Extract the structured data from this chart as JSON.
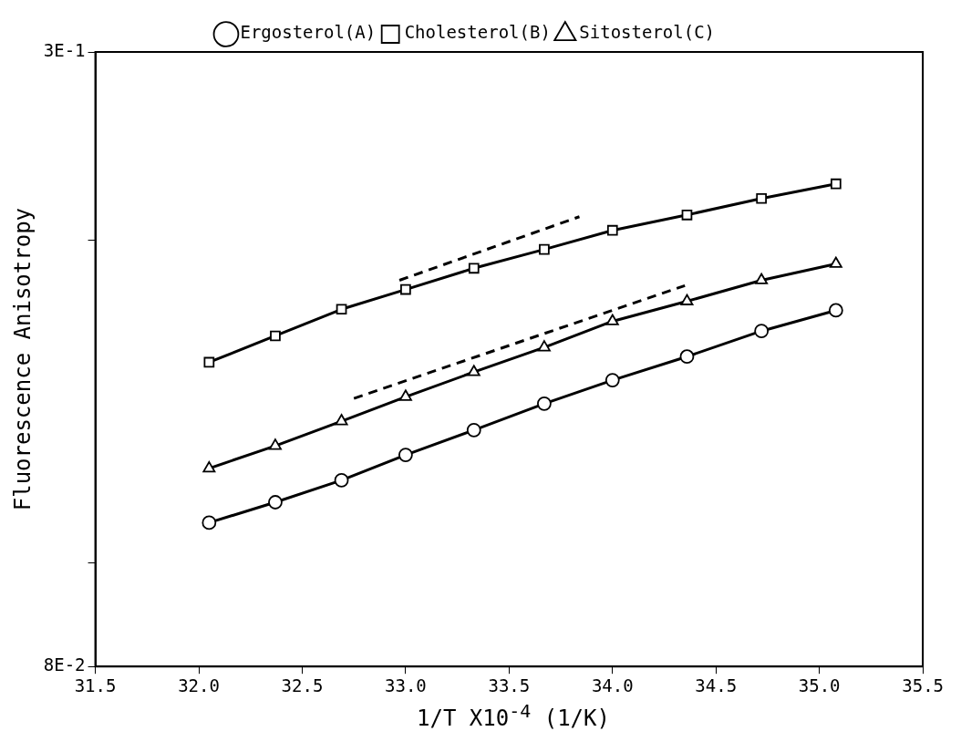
{
  "chart_data": {
    "type": "line",
    "xlabel": "1/T X10$^{-4}$  (1/K)",
    "ylabel": "Fluorescence Anisotropy",
    "log": "y",
    "grid": false,
    "legend": "top",
    "xlim": [
      31.5,
      35.5
    ],
    "xticks": [
      31.5,
      {
        "value": 32,
        "label": "32.0"
      },
      32.5,
      {
        "value": 33,
        "label": "33.0"
      },
      33.5,
      {
        "value": 34,
        "label": "34.0"
      },
      34.5,
      {
        "value": 35,
        "label": "35.0"
      },
      35.5
    ],
    "ylim": [
      0.08,
      0.3
    ],
    "yticks": [
      {
        "value": 0.08,
        "label": "8E-2"
      },
      {
        "value": 0.1,
        "label": null
      },
      {
        "value": 0.2,
        "label": null
      },
      {
        "value": 0.3,
        "label": "3E-1"
      }
    ],
    "x": [
      32.05,
      32.37,
      32.69,
      33.0,
      33.33,
      33.67,
      34.0,
      34.36,
      34.72,
      35.08
    ],
    "series": [
      {
        "name": "Ergosterol(A)",
        "color": "#000000",
        "marker": "circle",
        "line_style": "solid",
        "values": [
          0.109,
          0.1139,
          0.1194,
          0.1261,
          0.133,
          0.1408,
          0.1481,
          0.1558,
          0.1646,
          0.1721
        ]
      },
      {
        "name": "Cholesterol(B)",
        "color": "#000000",
        "marker": "square",
        "line_style": "solid",
        "values": [
          0.1539,
          0.1629,
          0.1725,
          0.18,
          0.1884,
          0.1962,
          0.2044,
          0.2113,
          0.2189,
          0.2259
        ]
      },
      {
        "name": "Sitosterol(C)",
        "color": "#000000",
        "marker": "triangle",
        "line_style": "solid",
        "values": [
          0.1225,
          0.1286,
          0.1356,
          0.1429,
          0.1507,
          0.1589,
          0.1681,
          0.1755,
          0.1836,
          0.1902
        ]
      },
      {
        "type": "line",
        "color": "#000000",
        "marker": "none",
        "line_style": "dashed",
        "x": [
          32.97,
          33.84
        ],
        "values": [
          0.1836,
          0.2105
        ]
      },
      {
        "type": "line",
        "color": "#000000",
        "marker": "none",
        "line_style": "dashed",
        "x": [
          32.75,
          34.35
        ],
        "values": [
          0.1424,
          0.1815
        ]
      }
    ]
  }
}
